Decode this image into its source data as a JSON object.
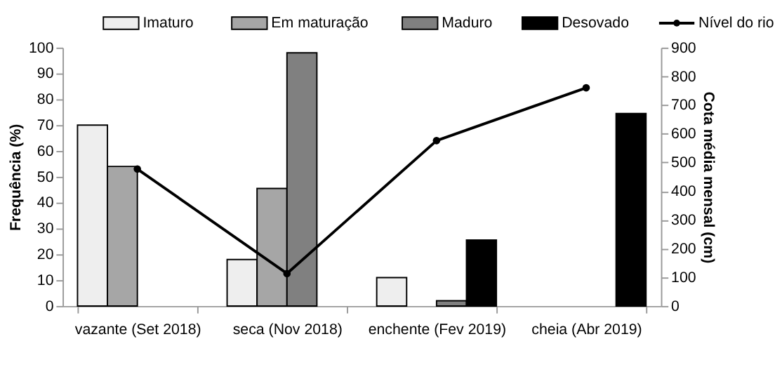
{
  "chart_data": {
    "type": "bar",
    "categories": [
      "vazante (Set 2018)",
      "seca (Nov 2018)",
      "enchente (Fev 2019)",
      "cheia (Abr 2019)"
    ],
    "ylabel": "Frequência (%)",
    "y2label": "Cota média mensal  (cm)",
    "ylim": [
      0,
      100
    ],
    "yticks": [
      0,
      10,
      20,
      30,
      40,
      50,
      60,
      70,
      80,
      90,
      100
    ],
    "y2lim": [
      0,
      900
    ],
    "y2ticks": [
      0,
      100,
      200,
      300,
      400,
      500,
      600,
      700,
      800,
      900
    ],
    "legend": "top",
    "grid": false,
    "series": [
      {
        "name": "Imaturo",
        "color": "#eeeeee",
        "values": [
          70,
          18,
          11,
          null
        ]
      },
      {
        "name": "Em maturação",
        "color": "#a6a6a6",
        "values": [
          54,
          45.5,
          null,
          null
        ]
      },
      {
        "name": "Maduro",
        "color": "#808080",
        "values": [
          null,
          98,
          2,
          null
        ]
      },
      {
        "name": "Desovado",
        "color": "#000000",
        "values": [
          null,
          null,
          25.5,
          74.5
        ]
      },
      {
        "name": "Nível do rio",
        "color": "#000000",
        "type": "line",
        "axis": "y2",
        "marker": "circle",
        "line_style": "solid",
        "values": [
          477,
          113,
          576,
          760
        ]
      }
    ]
  }
}
